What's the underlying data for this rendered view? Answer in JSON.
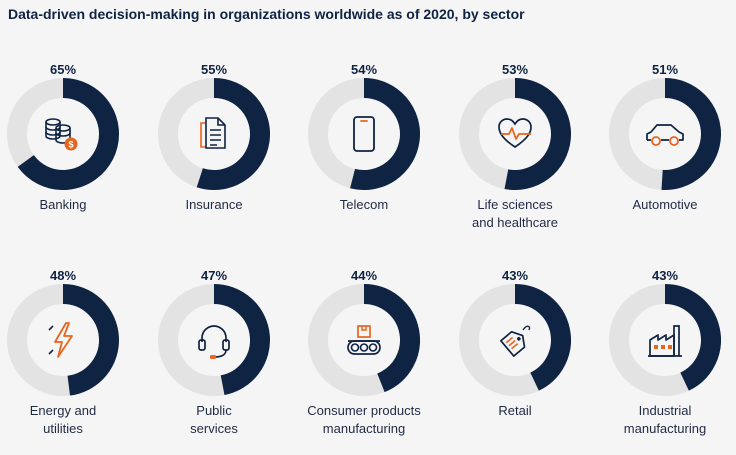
{
  "colors": {
    "filled": "#0f2342",
    "track": "#e3e3e3",
    "accent": "#e8651e",
    "background": "#f5f5f5"
  },
  "chart_data": {
    "type": "donut",
    "title": "Data-driven decision-making in organizations worldwide as of 2020, by sector",
    "unit": "%",
    "categories": [
      "Banking",
      "Insurance",
      "Telecom",
      "Life sciences and healthcare",
      "Automotive",
      "Energy and utilities",
      "Public services",
      "Consumer products manufacturing",
      "Retail",
      "Industrial manufacturing"
    ],
    "values": [
      65,
      55,
      54,
      53,
      51,
      48,
      47,
      44,
      43,
      43
    ],
    "items": [
      {
        "value": 65,
        "pct_label": "65%",
        "label_lines": [
          "Banking"
        ],
        "icon": "coins-icon"
      },
      {
        "value": 55,
        "pct_label": "55%",
        "label_lines": [
          "Insurance"
        ],
        "icon": "document-icon"
      },
      {
        "value": 54,
        "pct_label": "54%",
        "label_lines": [
          "Telecom"
        ],
        "icon": "smartphone-icon"
      },
      {
        "value": 53,
        "pct_label": "53%",
        "label_lines": [
          "Life sciences",
          "and healthcare"
        ],
        "icon": "heartbeat-icon"
      },
      {
        "value": 51,
        "pct_label": "51%",
        "label_lines": [
          "Automotive"
        ],
        "icon": "car-icon"
      },
      {
        "value": 48,
        "pct_label": "48%",
        "label_lines": [
          "Energy and",
          "utilities"
        ],
        "icon": "lightning-icon"
      },
      {
        "value": 47,
        "pct_label": "47%",
        "label_lines": [
          "Public",
          "services"
        ],
        "icon": "headset-icon"
      },
      {
        "value": 44,
        "pct_label": "44%",
        "label_lines": [
          "Consumer products",
          "manufacturing"
        ],
        "icon": "conveyor-icon"
      },
      {
        "value": 43,
        "pct_label": "43%",
        "label_lines": [
          "Retail"
        ],
        "icon": "price-tag-icon"
      },
      {
        "value": 43,
        "pct_label": "43%",
        "label_lines": [
          "Industrial",
          "manufacturing"
        ],
        "icon": "factory-icon"
      }
    ]
  }
}
